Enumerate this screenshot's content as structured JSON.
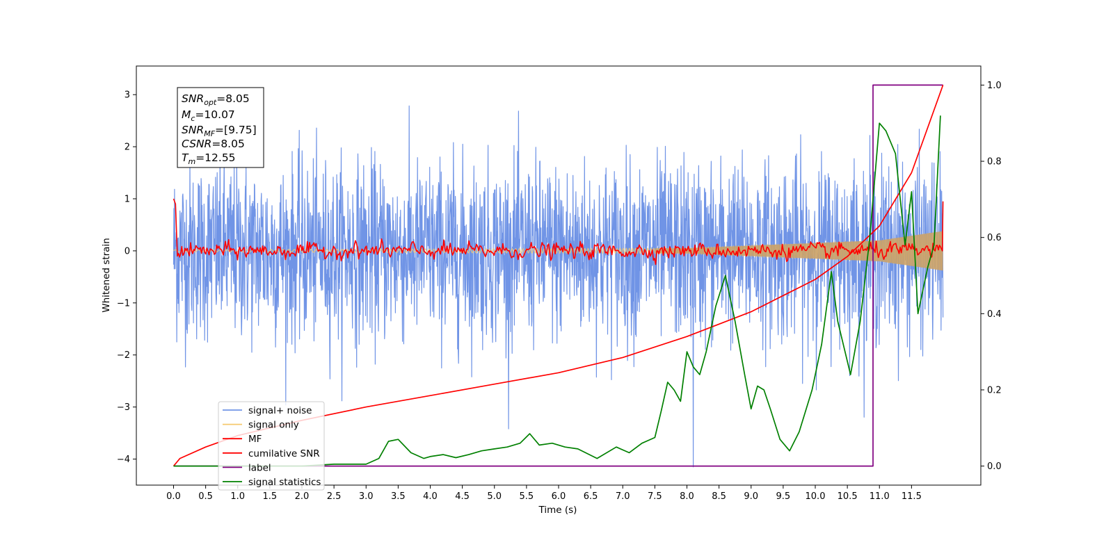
{
  "chart_data": {
    "type": "line",
    "xlabel": "Time (s)",
    "ylabel": "Whitened strain",
    "xlim": [
      -0.58,
      12.58
    ],
    "ylim": [
      -4.5,
      3.55
    ],
    "y2lim": [
      -0.05,
      1.05
    ],
    "x_ticks": [
      "0.0",
      "0.5",
      "1.0",
      "1.5",
      "2.0",
      "2.5",
      "3.0",
      "3.5",
      "4.0",
      "4.5",
      "5.0",
      "5.5",
      "6.0",
      "6.5",
      "7.0",
      "7.5",
      "8.0",
      "8.5",
      "9.0",
      "9.5",
      "10.0",
      "10.5",
      "11.0",
      "11.5"
    ],
    "y_ticks": [
      "3",
      "2",
      "1",
      "0",
      "−1",
      "−2",
      "−3",
      "−4"
    ],
    "y2_ticks": [
      "1.0",
      "0.8",
      "0.6",
      "0.4",
      "0.2",
      "0.0"
    ],
    "grid": false,
    "legend_position": "lower-left",
    "annotation": {
      "snr_opt": {
        "base": "SNR",
        "sub": "opt",
        "value": "=8.05"
      },
      "mc": {
        "base": "M",
        "sub": "c",
        "value": "=10.07"
      },
      "snr_mf": {
        "base": "SNR",
        "sub": "MF",
        "value": "=[9.75]"
      },
      "csnr": {
        "base": "CSNR",
        "sub": "",
        "value": "=8.05"
      },
      "tm": {
        "base": "T",
        "sub": "m",
        "value": "=12.55"
      }
    },
    "series": [
      {
        "name": "signal+ noise",
        "color": "#7094e6",
        "axis": "left",
        "noise_std": 0.85,
        "span": [
          0.0,
          11.99
        ],
        "spike": {
          "x": 8.1,
          "y": -4.15
        }
      },
      {
        "name": "signal only",
        "color": "#f5c96e",
        "axis": "left",
        "envelope": [
          [
            0.0,
            0.02
          ],
          [
            8.0,
            0.05
          ],
          [
            11.0,
            0.2
          ],
          [
            11.99,
            0.38
          ]
        ]
      },
      {
        "name": "MF",
        "color": "#ff0000",
        "axis": "left",
        "start_value": 1.0,
        "end_value": 0.95,
        "jitter": 0.07
      },
      {
        "name": "cumilative SNR",
        "color": "#ff0000",
        "axis": "right",
        "x": [
          0.0,
          0.1,
          0.5,
          1.0,
          2.0,
          3.0,
          4.0,
          5.0,
          6.0,
          7.0,
          8.0,
          9.0,
          10.0,
          10.5,
          11.0,
          11.5,
          11.99
        ],
        "y": [
          0.0,
          0.02,
          0.05,
          0.08,
          0.12,
          0.155,
          0.185,
          0.215,
          0.245,
          0.285,
          0.34,
          0.405,
          0.49,
          0.55,
          0.63,
          0.77,
          1.0
        ]
      },
      {
        "name": "label",
        "color": "#800080",
        "axis": "right",
        "x": [
          0.0,
          10.9,
          10.9,
          11.99
        ],
        "y": [
          0.0,
          0.0,
          1.0,
          1.0
        ]
      },
      {
        "name": "signal statistics",
        "color": "#008000",
        "axis": "right",
        "x": [
          0.0,
          1.0,
          2.0,
          2.5,
          3.0,
          3.2,
          3.35,
          3.5,
          3.7,
          3.9,
          4.0,
          4.2,
          4.4,
          4.6,
          4.8,
          5.0,
          5.2,
          5.4,
          5.55,
          5.7,
          5.9,
          6.1,
          6.3,
          6.6,
          6.9,
          7.1,
          7.3,
          7.5,
          7.6,
          7.7,
          7.8,
          7.9,
          8.0,
          8.1,
          8.2,
          8.3,
          8.45,
          8.6,
          8.75,
          8.9,
          9.0,
          9.1,
          9.2,
          9.3,
          9.45,
          9.6,
          9.75,
          9.95,
          10.1,
          10.25,
          10.35,
          10.45,
          10.55,
          10.7,
          10.85,
          11.0,
          11.1,
          11.25,
          11.4,
          11.5,
          11.6,
          11.75,
          11.85,
          11.95
        ],
        "y": [
          0.0,
          0.0,
          0.0,
          0.005,
          0.005,
          0.02,
          0.065,
          0.07,
          0.035,
          0.02,
          0.025,
          0.03,
          0.022,
          0.03,
          0.04,
          0.045,
          0.05,
          0.06,
          0.085,
          0.055,
          0.06,
          0.05,
          0.045,
          0.02,
          0.05,
          0.035,
          0.06,
          0.075,
          0.145,
          0.22,
          0.2,
          0.17,
          0.3,
          0.26,
          0.24,
          0.3,
          0.42,
          0.5,
          0.38,
          0.24,
          0.15,
          0.21,
          0.2,
          0.15,
          0.07,
          0.04,
          0.09,
          0.2,
          0.32,
          0.51,
          0.38,
          0.31,
          0.24,
          0.38,
          0.6,
          0.9,
          0.88,
          0.82,
          0.58,
          0.72,
          0.4,
          0.52,
          0.58,
          0.92
        ]
      }
    ]
  }
}
